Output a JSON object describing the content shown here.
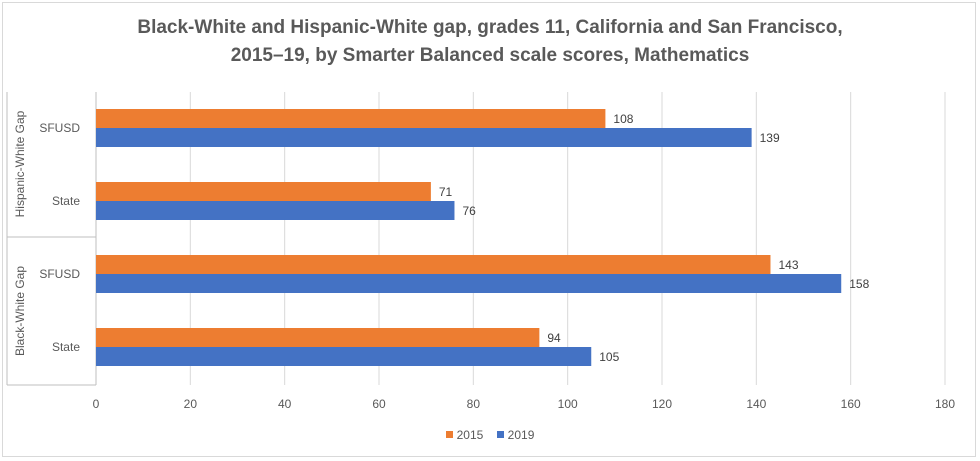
{
  "chart_data": {
    "type": "bar",
    "orientation": "horizontal",
    "title_line1": "Black-White and Hispanic-White gap, grades 11, California and San Francisco,",
    "title_line2": "2015–19, by Smarter Balanced scale scores, Mathematics",
    "groups": [
      {
        "name": "Hispanic-White Gap",
        "categories": [
          "SFUSD",
          "State"
        ]
      },
      {
        "name": "Black-White Gap",
        "categories": [
          "SFUSD",
          "State"
        ]
      }
    ],
    "categories": [
      "Hispanic-White Gap / SFUSD",
      "Hispanic-White Gap / State",
      "Black-White Gap / SFUSD",
      "Black-White Gap / State"
    ],
    "series": [
      {
        "name": "2015",
        "color": "#ed7d31",
        "values": [
          108,
          71,
          143,
          94
        ]
      },
      {
        "name": "2019",
        "color": "#4472c4",
        "values": [
          139,
          76,
          158,
          105
        ]
      }
    ],
    "xlim": [
      0,
      180
    ],
    "xticks": [
      0,
      20,
      40,
      60,
      80,
      100,
      120,
      140,
      160,
      180
    ],
    "grid": true,
    "legend_position": "bottom"
  }
}
